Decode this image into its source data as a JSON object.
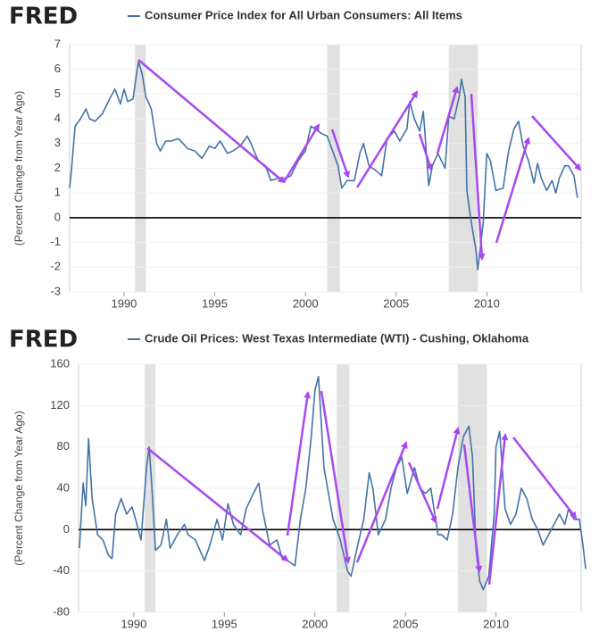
{
  "chart_data": [
    {
      "type": "line",
      "logo": "FRED",
      "y_label": "(Percent Change from Year Ago)",
      "x": [
        1987.0,
        1987.1,
        1987.3,
        1987.6,
        1987.9,
        1988.1,
        1988.4,
        1988.8,
        1989.2,
        1989.5,
        1989.8,
        1990.0,
        1990.2,
        1990.5,
        1990.7,
        1990.8,
        1991.0,
        1991.2,
        1991.5,
        1991.8,
        1992.0,
        1992.3,
        1992.6,
        1993.0,
        1993.5,
        1993.9,
        1994.3,
        1994.7,
        1995.0,
        1995.3,
        1995.7,
        1996.0,
        1996.4,
        1996.8,
        1997.0,
        1997.4,
        1997.8,
        1998.1,
        1998.5,
        1998.9,
        1999.2,
        1999.6,
        2000.0,
        2000.3,
        2000.7,
        2000.9,
        2001.2,
        2001.5,
        2001.8,
        2002.0,
        2002.3,
        2002.7,
        2003.0,
        2003.2,
        2003.5,
        2003.9,
        2004.2,
        2004.5,
        2004.9,
        2005.2,
        2005.6,
        2005.75,
        2006.0,
        2006.3,
        2006.5,
        2006.8,
        2007.0,
        2007.3,
        2007.7,
        2007.9,
        2008.2,
        2008.5,
        2008.6,
        2008.8,
        2008.9,
        2009.1,
        2009.4,
        2009.5,
        2009.8,
        2010.0,
        2010.2,
        2010.5,
        2010.9,
        2011.2,
        2011.5,
        2011.75,
        2012.0,
        2012.3,
        2012.6,
        2012.8,
        2013.0,
        2013.3,
        2013.6,
        2013.8,
        2014.0,
        2014.3,
        2014.5,
        2014.8,
        2015.0
      ],
      "series": [
        {
          "name": "Consumer Price Index for All Urban Consumers: All Items",
          "color": "#4572a7",
          "values": [
            1.2,
            1.9,
            3.7,
            4.0,
            4.4,
            4.0,
            3.9,
            4.2,
            4.8,
            5.2,
            4.6,
            5.2,
            4.7,
            4.8,
            5.9,
            6.3,
            5.8,
            4.9,
            4.4,
            3.0,
            2.7,
            3.1,
            3.1,
            3.2,
            2.8,
            2.7,
            2.4,
            2.9,
            2.8,
            3.1,
            2.6,
            2.7,
            2.9,
            3.3,
            3.0,
            2.3,
            2.1,
            1.5,
            1.6,
            1.6,
            1.7,
            2.3,
            2.7,
            3.7,
            3.5,
            3.4,
            3.3,
            2.7,
            2.1,
            1.2,
            1.5,
            1.5,
            2.6,
            3.0,
            2.1,
            1.9,
            1.7,
            3.2,
            3.5,
            3.1,
            3.6,
            4.7,
            4.0,
            3.5,
            4.3,
            1.3,
            2.1,
            2.6,
            2.0,
            4.1,
            4.0,
            5.0,
            5.6,
            4.9,
            1.1,
            0.0,
            -1.3,
            -2.1,
            -0.2,
            2.6,
            2.3,
            1.1,
            1.2,
            2.7,
            3.6,
            3.9,
            2.9,
            2.3,
            1.4,
            2.2,
            1.6,
            1.1,
            1.5,
            1.0,
            1.6,
            2.1,
            2.1,
            1.7,
            0.8
          ]
        }
      ],
      "recessions": [
        [
          1990.6,
          1991.2
        ],
        [
          2001.2,
          2001.9
        ],
        [
          2007.9,
          2009.5
        ]
      ],
      "xlim": [
        1987.0,
        2015.2
      ],
      "xticks": [
        1990,
        1995,
        2000,
        2005,
        2010
      ],
      "ylim": [
        -3,
        7
      ],
      "yticks": [
        -3,
        -2,
        -1,
        0,
        1,
        2,
        3,
        4,
        5,
        6,
        7
      ],
      "grid": true
    },
    {
      "type": "line",
      "logo": "FRED",
      "y_label": "(Percent Change from Year Ago)",
      "x": [
        1987.0,
        1987.2,
        1987.35,
        1987.5,
        1987.7,
        1988.0,
        1988.3,
        1988.6,
        1988.8,
        1989.0,
        1989.3,
        1989.6,
        1989.9,
        1990.1,
        1990.4,
        1990.7,
        1990.85,
        1991.0,
        1991.2,
        1991.5,
        1991.8,
        1992.0,
        1992.4,
        1992.8,
        1993.0,
        1993.4,
        1993.9,
        1994.2,
        1994.6,
        1994.9,
        1995.2,
        1995.5,
        1995.9,
        1996.2,
        1996.6,
        1996.9,
        1997.1,
        1997.5,
        1997.9,
        1998.2,
        1998.5,
        1998.9,
        1999.2,
        1999.5,
        1999.8,
        2000.0,
        2000.2,
        2000.5,
        2000.8,
        2001.0,
        2001.4,
        2001.8,
        2002.0,
        2002.3,
        2002.7,
        2003.0,
        2003.2,
        2003.5,
        2003.9,
        2004.2,
        2004.5,
        2004.8,
        2005.1,
        2005.5,
        2005.8,
        2006.1,
        2006.4,
        2006.8,
        2007.0,
        2007.3,
        2007.6,
        2007.9,
        2008.2,
        2008.5,
        2008.7,
        2008.9,
        2009.1,
        2009.3,
        2009.6,
        2009.9,
        2010.0,
        2010.2,
        2010.5,
        2010.8,
        2011.1,
        2011.4,
        2011.7,
        2012.0,
        2012.3,
        2012.6,
        2012.9,
        2013.2,
        2013.5,
        2013.8,
        2014.0,
        2014.3,
        2014.6,
        2014.8,
        2014.95
      ],
      "series": [
        {
          "name": "Crude Oil Prices: West Texas Intermediate (WTI) - Cushing, Oklahoma",
          "color": "#4572a7",
          "values": [
            -18,
            45,
            23,
            88,
            30,
            -5,
            -10,
            -25,
            -28,
            15,
            30,
            15,
            22,
            10,
            -10,
            60,
            80,
            40,
            -20,
            -15,
            10,
            -18,
            -5,
            5,
            -5,
            -10,
            -30,
            -15,
            10,
            -10,
            25,
            5,
            -5,
            20,
            35,
            45,
            20,
            -15,
            -10,
            -28,
            -30,
            -35,
            10,
            40,
            90,
            135,
            148,
            60,
            30,
            10,
            -10,
            -40,
            -45,
            -20,
            10,
            55,
            40,
            -5,
            10,
            40,
            60,
            70,
            35,
            60,
            40,
            35,
            40,
            -5,
            -5,
            -10,
            15,
            60,
            90,
            100,
            70,
            -20,
            -50,
            -58,
            -45,
            15,
            80,
            95,
            20,
            5,
            15,
            40,
            30,
            10,
            0,
            -15,
            -5,
            5,
            15,
            5,
            20,
            10,
            10,
            -15,
            -38
          ]
        }
      ],
      "recessions": [
        [
          1990.6,
          1991.2
        ],
        [
          2001.2,
          2001.9
        ],
        [
          2007.9,
          2009.5
        ]
      ],
      "xlim": [
        1986.95,
        2014.7
      ],
      "xticks": [
        1990,
        1995,
        2000,
        2005,
        2010
      ],
      "ylim": [
        -80,
        160
      ],
      "yticks": [
        -80,
        -40,
        0,
        40,
        80,
        120,
        160
      ],
      "grid": true
    }
  ]
}
